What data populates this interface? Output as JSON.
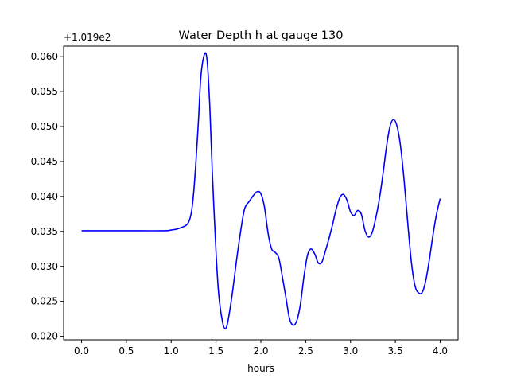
{
  "chart_data": {
    "type": "line",
    "title": "Water Depth h at gauge 130",
    "xlabel": "hours",
    "ylabel": "",
    "y_offset_label": "+1.019e2",
    "xlim": [
      -0.2,
      4.2
    ],
    "ylim": [
      0.0195,
      0.0615
    ],
    "x_ticks": [
      0.0,
      0.5,
      1.0,
      1.5,
      2.0,
      2.5,
      3.0,
      3.5,
      4.0
    ],
    "x_tick_labels": [
      "0.0",
      "0.5",
      "1.0",
      "1.5",
      "2.0",
      "2.5",
      "3.0",
      "3.5",
      "4.0"
    ],
    "y_ticks": [
      0.02,
      0.025,
      0.03,
      0.035,
      0.04,
      0.045,
      0.05,
      0.055,
      0.06
    ],
    "y_tick_labels": [
      "0.020",
      "0.025",
      "0.030",
      "0.035",
      "0.040",
      "0.045",
      "0.050",
      "0.055",
      "0.060"
    ],
    "grid": false,
    "series": [
      {
        "color": "#0000ff",
        "x": [
          0.0,
          0.5,
          0.9,
          1.0,
          1.1,
          1.2,
          1.25,
          1.3,
          1.33,
          1.37,
          1.4,
          1.43,
          1.46,
          1.5,
          1.53,
          1.57,
          1.6,
          1.63,
          1.68,
          1.73,
          1.78,
          1.82,
          1.87,
          1.92,
          1.96,
          2.0,
          2.04,
          2.08,
          2.12,
          2.16,
          2.2,
          2.24,
          2.28,
          2.32,
          2.36,
          2.4,
          2.44,
          2.48,
          2.52,
          2.56,
          2.6,
          2.64,
          2.68,
          2.72,
          2.76,
          2.8,
          2.84,
          2.88,
          2.92,
          2.96,
          3.0,
          3.04,
          3.08,
          3.12,
          3.16,
          3.2,
          3.24,
          3.28,
          3.32,
          3.36,
          3.4,
          3.44,
          3.48,
          3.52,
          3.56,
          3.6,
          3.64,
          3.68,
          3.72,
          3.76,
          3.8,
          3.84,
          3.88,
          3.92,
          3.96,
          4.0
        ],
        "y": [
          0.0351,
          0.0351,
          0.0351,
          0.0352,
          0.0355,
          0.0365,
          0.0405,
          0.05,
          0.057,
          0.0603,
          0.0595,
          0.053,
          0.043,
          0.032,
          0.026,
          0.0222,
          0.0211,
          0.022,
          0.026,
          0.031,
          0.0355,
          0.0383,
          0.0393,
          0.0402,
          0.0407,
          0.0404,
          0.0385,
          0.0348,
          0.0325,
          0.032,
          0.0312,
          0.0285,
          0.0255,
          0.0225,
          0.0216,
          0.0222,
          0.0245,
          0.0285,
          0.0316,
          0.0325,
          0.0318,
          0.0305,
          0.0306,
          0.0322,
          0.034,
          0.036,
          0.0382,
          0.0398,
          0.0403,
          0.0395,
          0.0378,
          0.0373,
          0.038,
          0.0375,
          0.0352,
          0.0342,
          0.0348,
          0.0368,
          0.0395,
          0.043,
          0.047,
          0.05,
          0.051,
          0.05,
          0.047,
          0.042,
          0.036,
          0.0305,
          0.0272,
          0.0262,
          0.0263,
          0.028,
          0.031,
          0.0345,
          0.0375,
          0.0397
        ]
      }
    ]
  }
}
